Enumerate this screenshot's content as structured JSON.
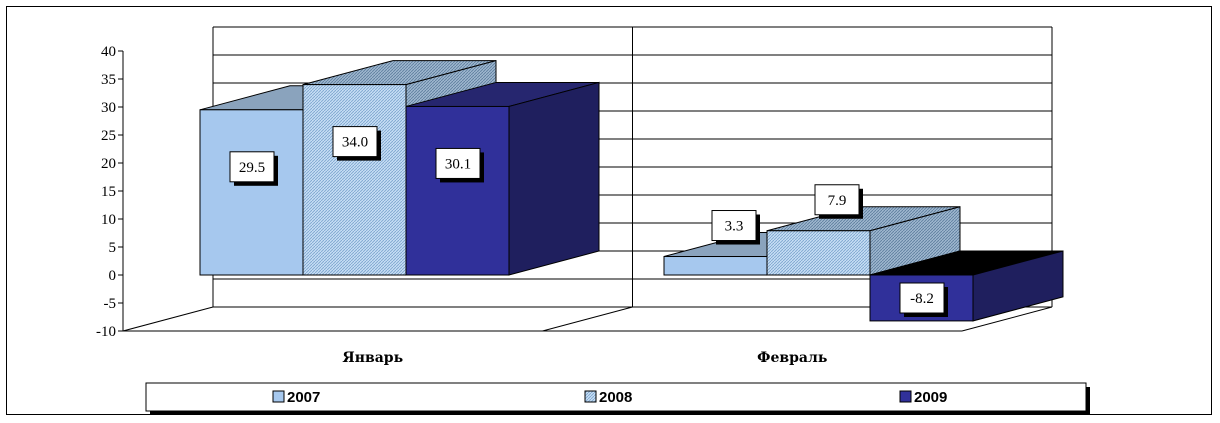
{
  "chart_data": {
    "type": "bar",
    "categories": [
      "Январь",
      "Февраль"
    ],
    "series": [
      {
        "name": "2007",
        "values": [
          29.5,
          3.3
        ],
        "color": "#a6c8ee",
        "side": "#7b93ad",
        "top": "#8aa3bd",
        "pattern": "solid"
      },
      {
        "name": "2008",
        "values": [
          34.0,
          7.9
        ],
        "color": "#a6c8ee",
        "side": "#6f8ba6",
        "top": "#8ea9c2",
        "pattern": "hatch"
      },
      {
        "name": "2009",
        "values": [
          30.1,
          -8.2
        ],
        "color": "#30309a",
        "side": "#1f1f5e",
        "top": "#26266f",
        "pattern": "solid"
      }
    ],
    "data_labels": [
      "29.5",
      "34.0",
      "30.1",
      "3.3",
      "7.9",
      "-8.2"
    ],
    "ylim": [
      -10,
      40
    ],
    "yticks": [
      -10,
      -5,
      0,
      5,
      10,
      15,
      20,
      25,
      30,
      35,
      40
    ],
    "grid": true,
    "legend_position": "bottom",
    "title": "",
    "xlabel": "",
    "ylabel": ""
  }
}
